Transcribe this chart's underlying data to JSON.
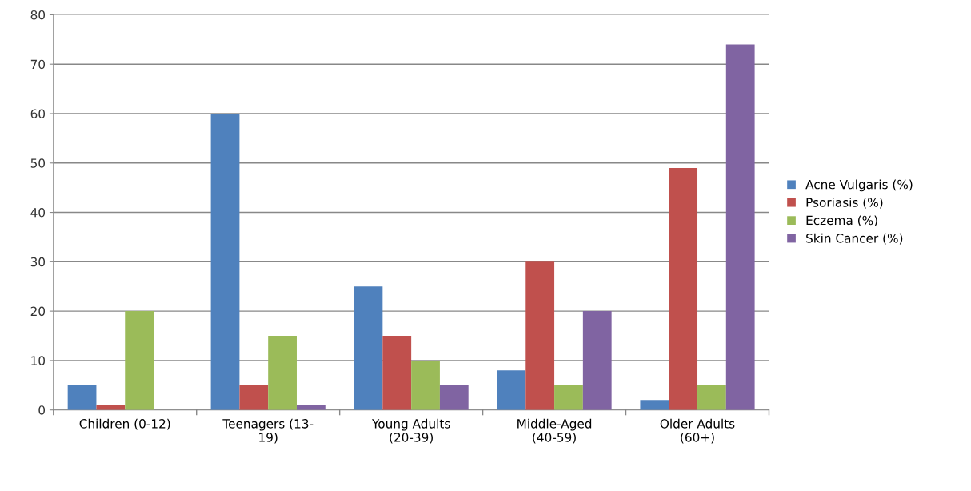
{
  "chart_data": {
    "type": "bar",
    "categories": [
      "Children (0-12)",
      "Teenagers (13-\n19)",
      "Young Adults\n(20-39)",
      "Middle-Aged\n(40-59)",
      "Older Adults\n(60+)"
    ],
    "series": [
      {
        "name": "Acne Vulgaris (%)",
        "color": "#4f81bd",
        "values": [
          5,
          60,
          25,
          8,
          2
        ]
      },
      {
        "name": "Psoriasis (%)",
        "color": "#c0504d",
        "values": [
          1,
          5,
          15,
          30,
          49
        ]
      },
      {
        "name": "Eczema (%)",
        "color": "#9bbb59",
        "values": [
          20,
          15,
          10,
          5,
          5
        ]
      },
      {
        "name": "Skin Cancer (%)",
        "color": "#8064a2",
        "values": [
          0,
          1,
          5,
          20,
          74
        ]
      }
    ],
    "ylim": [
      0,
      80
    ],
    "yticks": [
      0,
      10,
      20,
      30,
      40,
      50,
      60,
      70,
      80
    ],
    "grid": "y",
    "legend": "right"
  }
}
